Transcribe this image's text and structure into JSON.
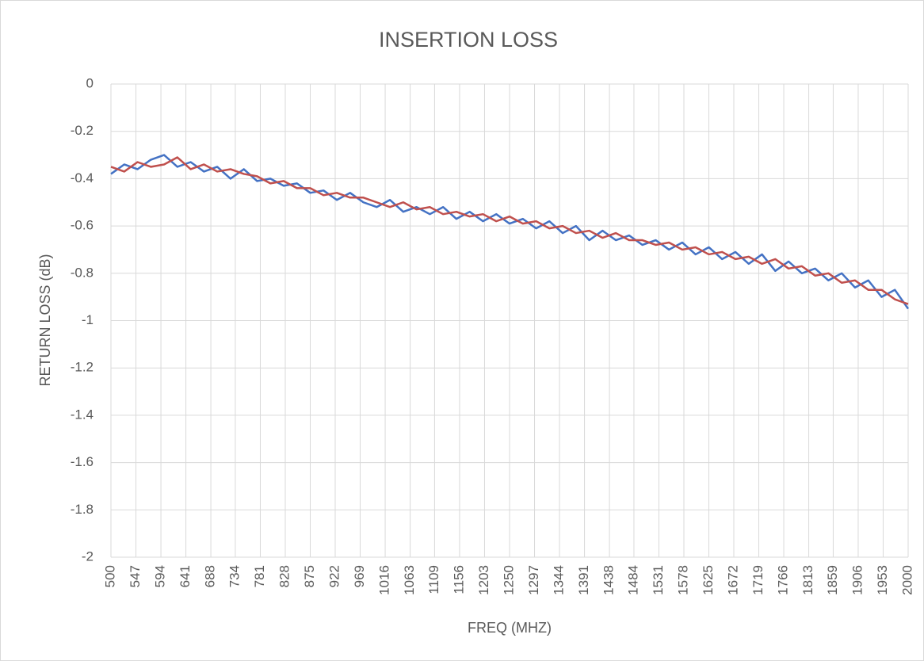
{
  "chart_data": {
    "type": "line",
    "title": "INSERTION LOSS",
    "xlabel": "FREQ (MHZ)",
    "ylabel": "RETURN LOSS (dB)",
    "x": [
      500,
      525,
      550,
      575,
      600,
      625,
      650,
      675,
      700,
      725,
      750,
      775,
      800,
      825,
      850,
      875,
      900,
      925,
      950,
      975,
      1000,
      1025,
      1050,
      1075,
      1100,
      1125,
      1150,
      1175,
      1200,
      1225,
      1250,
      1275,
      1300,
      1325,
      1350,
      1375,
      1400,
      1425,
      1450,
      1475,
      1500,
      1525,
      1550,
      1575,
      1600,
      1625,
      1650,
      1675,
      1700,
      1725,
      1750,
      1775,
      1800,
      1825,
      1850,
      1875,
      1900,
      1925,
      1950,
      1975,
      2000
    ],
    "series": [
      {
        "color": "#4472c4",
        "values": [
          -0.38,
          -0.34,
          -0.36,
          -0.32,
          -0.3,
          -0.35,
          -0.33,
          -0.37,
          -0.35,
          -0.4,
          -0.36,
          -0.41,
          -0.4,
          -0.43,
          -0.42,
          -0.46,
          -0.45,
          -0.49,
          -0.46,
          -0.5,
          -0.52,
          -0.49,
          -0.54,
          -0.52,
          -0.55,
          -0.52,
          -0.57,
          -0.54,
          -0.58,
          -0.55,
          -0.59,
          -0.57,
          -0.61,
          -0.58,
          -0.63,
          -0.6,
          -0.66,
          -0.62,
          -0.66,
          -0.64,
          -0.68,
          -0.66,
          -0.7,
          -0.67,
          -0.72,
          -0.69,
          -0.74,
          -0.71,
          -0.76,
          -0.72,
          -0.79,
          -0.75,
          -0.8,
          -0.78,
          -0.83,
          -0.8,
          -0.86,
          -0.83,
          -0.9,
          -0.87,
          -0.95
        ]
      },
      {
        "color": "#c0504d",
        "values": [
          -0.35,
          -0.37,
          -0.33,
          -0.35,
          -0.34,
          -0.31,
          -0.36,
          -0.34,
          -0.37,
          -0.36,
          -0.38,
          -0.39,
          -0.42,
          -0.41,
          -0.44,
          -0.44,
          -0.47,
          -0.46,
          -0.48,
          -0.48,
          -0.5,
          -0.52,
          -0.5,
          -0.53,
          -0.52,
          -0.55,
          -0.54,
          -0.56,
          -0.55,
          -0.58,
          -0.56,
          -0.59,
          -0.58,
          -0.61,
          -0.6,
          -0.63,
          -0.62,
          -0.65,
          -0.63,
          -0.66,
          -0.66,
          -0.68,
          -0.67,
          -0.7,
          -0.69,
          -0.72,
          -0.71,
          -0.74,
          -0.73,
          -0.76,
          -0.74,
          -0.78,
          -0.77,
          -0.81,
          -0.8,
          -0.84,
          -0.83,
          -0.87,
          -0.87,
          -0.91,
          -0.93
        ]
      }
    ],
    "xlim": [
      500,
      2000
    ],
    "xticks": [
      500,
      547,
      594,
      641,
      688,
      734,
      781,
      828,
      875,
      922,
      969,
      1016,
      1063,
      1109,
      1156,
      1203,
      1250,
      1297,
      1344,
      1391,
      1438,
      1484,
      1531,
      1578,
      1625,
      1672,
      1719,
      1766,
      1813,
      1859,
      1906,
      1953,
      2000
    ],
    "ylim": [
      -2,
      0
    ],
    "yticks": [
      -2,
      -1.8,
      -1.6,
      -1.4,
      -1.2,
      -1,
      -0.8,
      -0.6,
      -0.4,
      -0.2,
      0
    ],
    "grid": true
  }
}
